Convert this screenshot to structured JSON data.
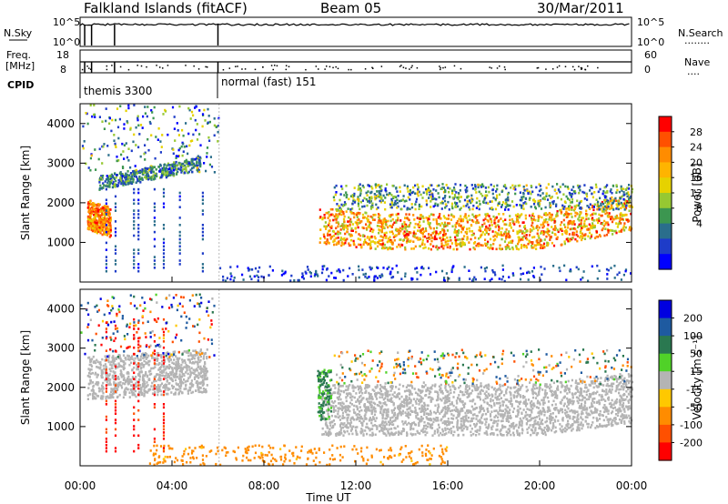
{
  "header": {
    "station": "Falkland Islands (fitACF)",
    "beam": "Beam 05",
    "date": "30/Mar/2011"
  },
  "left_labels": {
    "nsky": "N.Sky",
    "freq_line1": "Freq.",
    "freq_line2": "[MHz]",
    "cpid": "CPID"
  },
  "right_labels": {
    "nsearch": "N.Search",
    "nsearch_dots": "........",
    "nave": "Nave",
    "nave_dots": "...."
  },
  "cpid_labels": {
    "first": "themis 3300",
    "second": "normal (fast) 151"
  },
  "axes": {
    "x_ticks": [
      "00:00",
      "04:00",
      "08:00",
      "12:00",
      "16:00",
      "20:00",
      "00:00"
    ],
    "x_label": "Time UT",
    "y_ticks": [
      "1000",
      "2000",
      "3000",
      "4000"
    ],
    "y_label": "Slant Range [km]",
    "nsky_ticks": [
      "10^5",
      "10^0"
    ],
    "freq_ticks": [
      "18",
      "8"
    ],
    "nsearch_ticks": [
      "10^5",
      "10^0"
    ],
    "nave_ticks": [
      "60",
      "0"
    ]
  },
  "colorbars": {
    "power": {
      "label": "Power [dB]",
      "ticks": [
        "28",
        "24",
        "20",
        "16",
        "12",
        "8",
        "4"
      ],
      "colors": [
        "#ff0000",
        "#ff5000",
        "#ff8c00",
        "#ffb400",
        "#e6d200",
        "#96c832",
        "#3c9650",
        "#2a6e8c",
        "#1e3cc8",
        "#0000ff"
      ]
    },
    "velocity": {
      "label": "Velocity [m s⁻¹]",
      "ticks": [
        "200",
        "100",
        "50",
        "15",
        "-15",
        "-50",
        "-100",
        "-200"
      ],
      "colors": [
        "#0000e0",
        "#1e5aa0",
        "#2a7850",
        "#50d228",
        "#b4b4b4",
        "#ffc800",
        "#ff8c00",
        "#ff5000",
        "#ff0000"
      ]
    }
  },
  "chart_data": [
    {
      "type": "heatmap",
      "name": "power-panel",
      "xlim": [
        "00:00",
        "24:00"
      ],
      "ylim": [
        0,
        4500
      ],
      "regions": [
        {
          "t": [
            0.3,
            1.2
          ],
          "r": [
            1400,
            2100
          ],
          "level": 28
        },
        {
          "t": [
            1.0,
            5.0
          ],
          "r": [
            2400,
            2900
          ],
          "level": 12
        },
        {
          "t": [
            0.5,
            1.5
          ],
          "r": [
            3000,
            3600
          ],
          "level": 16
        },
        {
          "t": [
            10.5,
            24.0
          ],
          "r": [
            900,
            1800
          ],
          "level": 24
        },
        {
          "t": [
            11.0,
            24.0
          ],
          "r": [
            1900,
            2500
          ],
          "level": 16
        }
      ]
    },
    {
      "type": "heatmap",
      "name": "velocity-panel",
      "xlim": [
        "00:00",
        "24:00"
      ],
      "ylim": [
        0,
        4500
      ],
      "regions": [
        {
          "t": [
            0.3,
            5.5
          ],
          "r": [
            1700,
            2800
          ],
          "level": 0
        },
        {
          "t": [
            10.5,
            24.0
          ],
          "r": [
            800,
            2100
          ],
          "level": 0
        },
        {
          "t": [
            5.0,
            5.8
          ],
          "r": [
            4000,
            4400
          ],
          "level": -100
        },
        {
          "t": [
            10.3,
            11.0
          ],
          "r": [
            1200,
            2500
          ],
          "level": 30
        }
      ]
    }
  ]
}
